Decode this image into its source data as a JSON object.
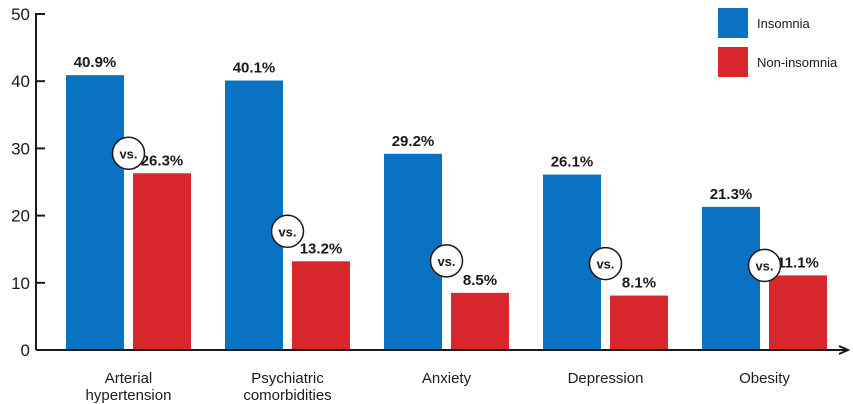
{
  "chart_data": {
    "type": "bar",
    "categories": [
      [
        "Arterial",
        "hypertension"
      ],
      [
        "Psychiatric",
        "comorbidities"
      ],
      [
        "Anxiety"
      ],
      [
        "Depression"
      ],
      [
        "Obesity"
      ]
    ],
    "series": [
      {
        "name": "Insomnia",
        "color": "#0a72c2",
        "values": [
          40.9,
          40.1,
          29.2,
          26.1,
          21.3
        ],
        "labels": [
          "40.9%",
          "40.1%",
          "29.2%",
          "26.1%",
          "21.3%"
        ]
      },
      {
        "name": "Non-insomnia",
        "color": "#d7262c",
        "values": [
          26.3,
          13.2,
          8.5,
          8.1,
          11.1
        ],
        "labels": [
          "26.3%",
          "13.2%",
          "8.5%",
          "8.1%",
          "11.1%"
        ]
      }
    ],
    "comparison_label": "vs.",
    "y_ticks": [
      0,
      10,
      20,
      30,
      40,
      50
    ],
    "ylim": [
      0,
      50
    ],
    "legend_position": "top-right",
    "grid": false
  }
}
